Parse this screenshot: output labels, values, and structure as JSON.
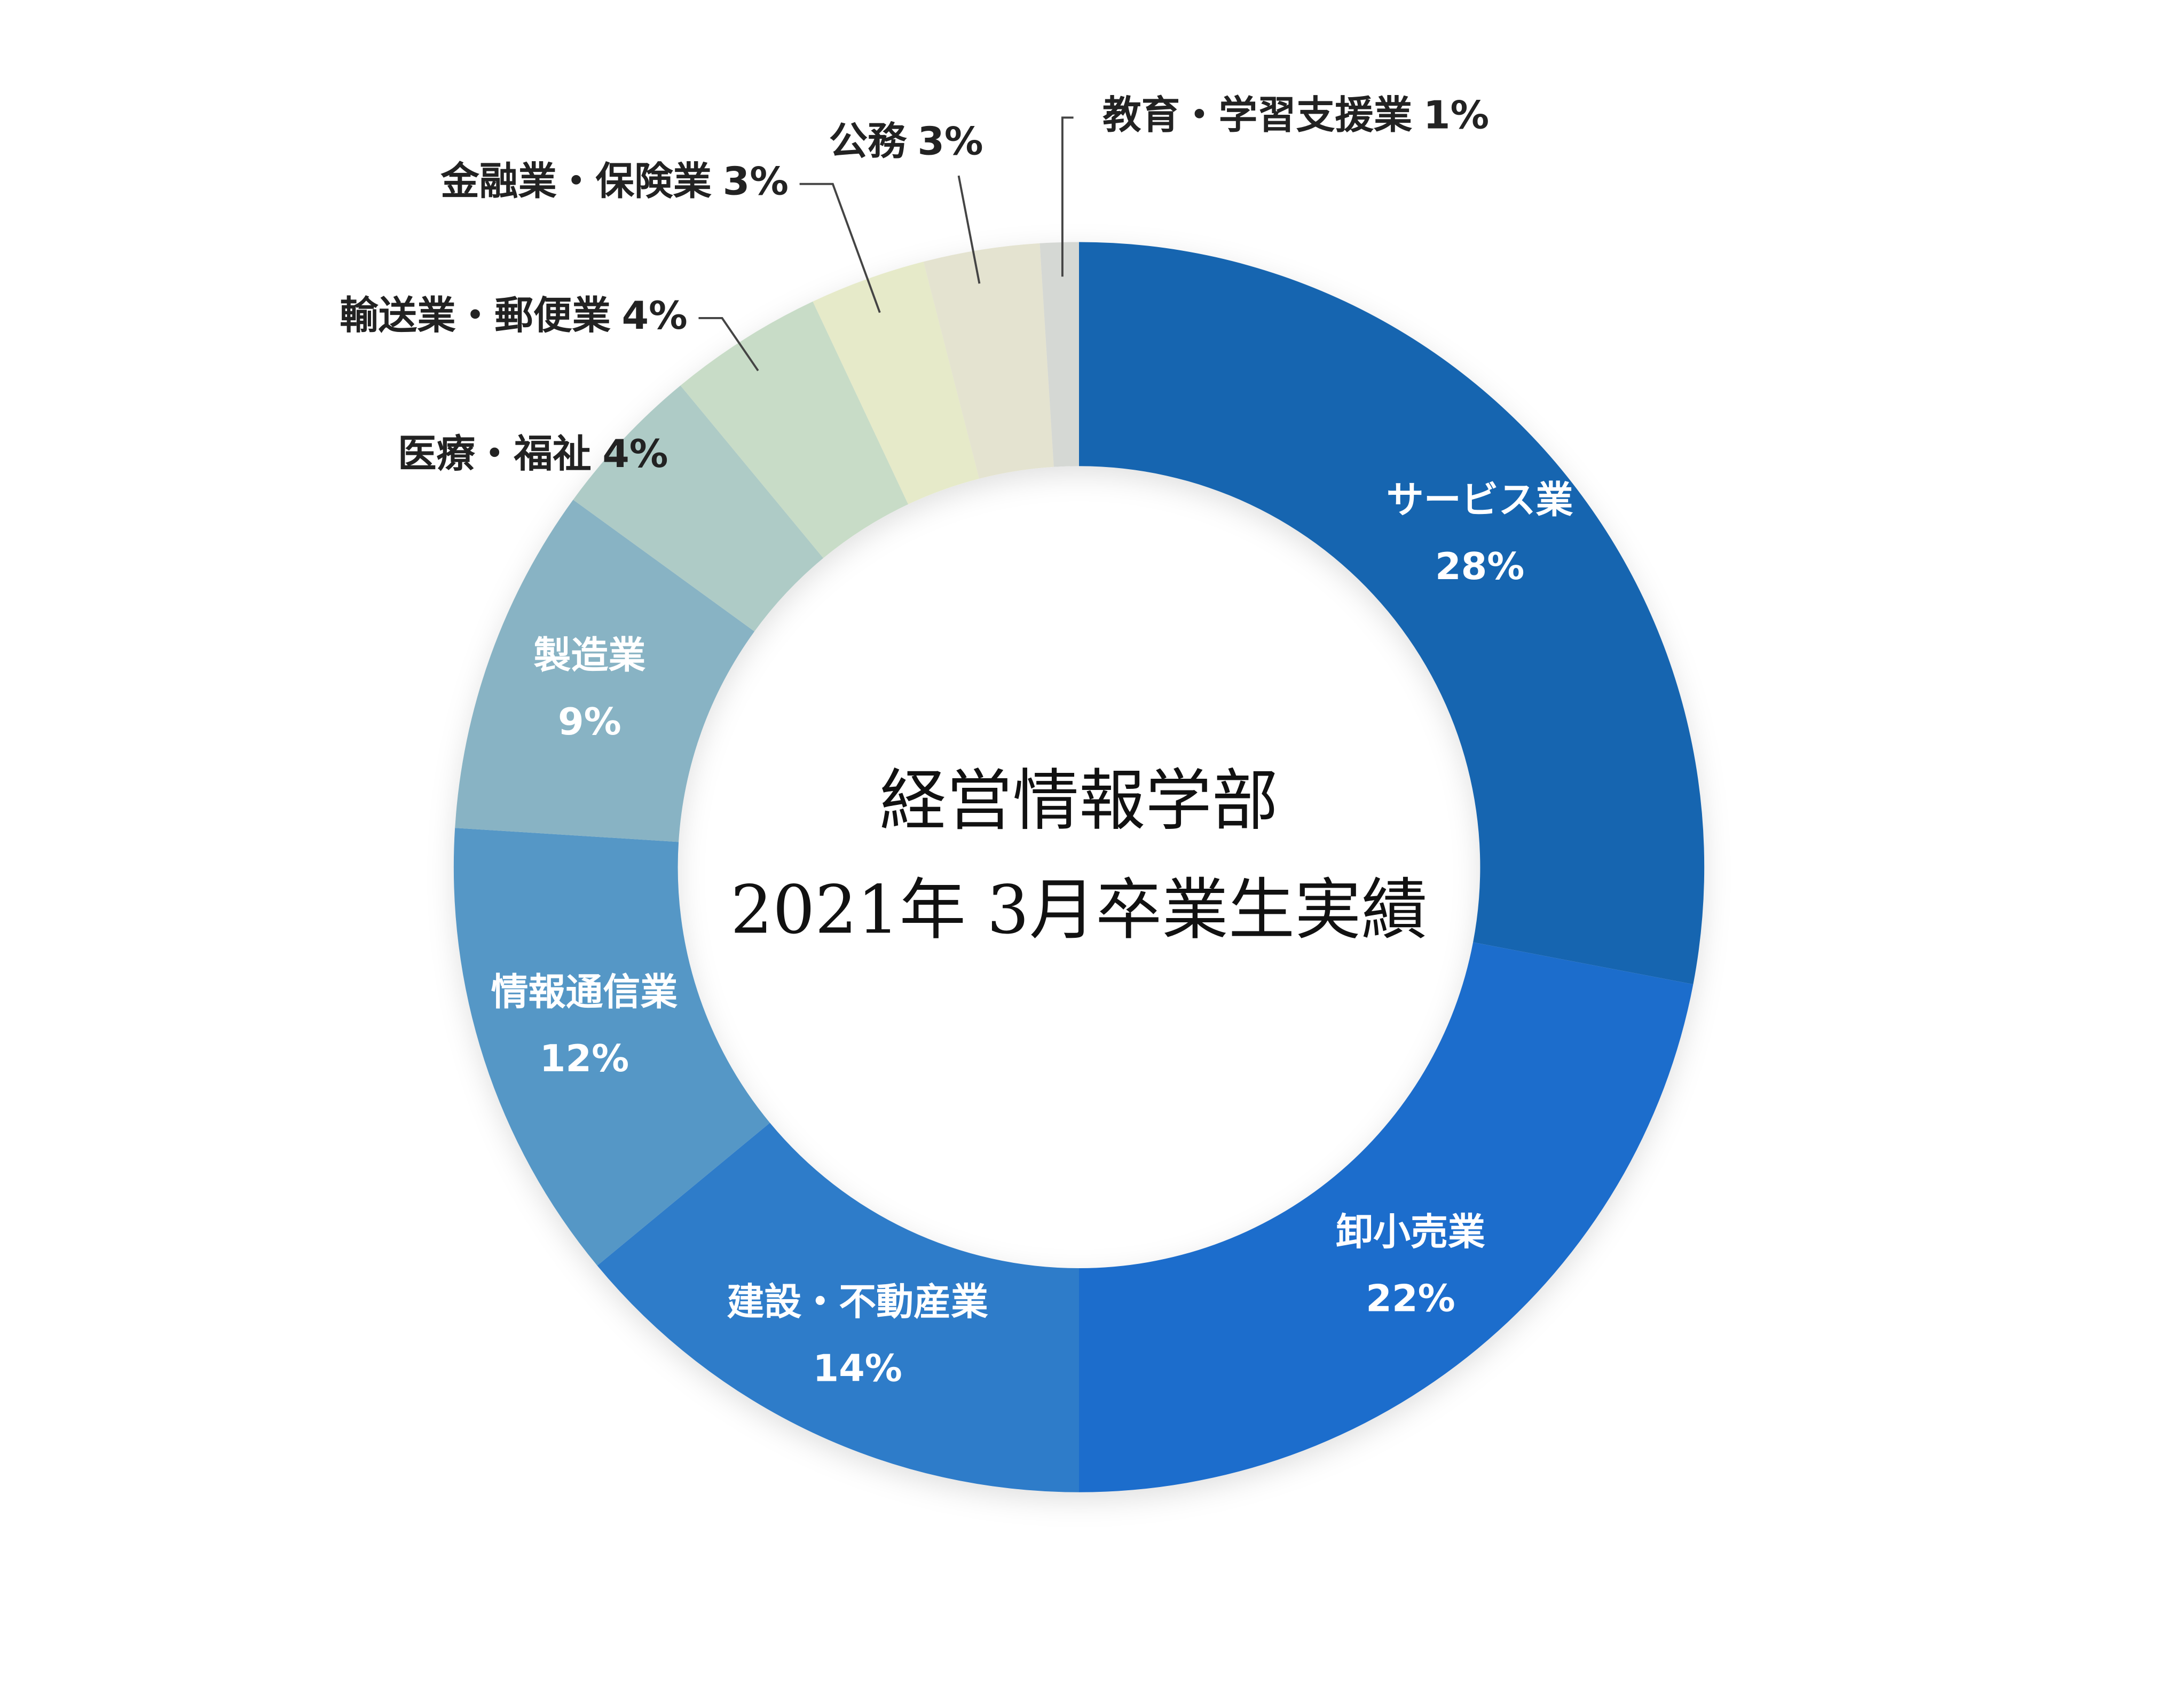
{
  "chart_data": {
    "type": "pie",
    "donut": true,
    "title": "経営情報学部",
    "subtitle": "2021年 3月卒業生実績",
    "categories": [
      "サービス業",
      "卸小売業",
      "建設・不動産業",
      "情報通信業",
      "製造業",
      "医療・福祉",
      "輸送業・郵便業",
      "金融業・保険業",
      "公務",
      "教育・学習支援業"
    ],
    "values": [
      28,
      22,
      14,
      12,
      9,
      4,
      4,
      3,
      3,
      1
    ],
    "value_labels": [
      "28%",
      "22%",
      "14%",
      "12%",
      "9%",
      "4%",
      "4%",
      "3%",
      "3%",
      "1%"
    ],
    "colors": [
      "#1565b0",
      "#1e6dcc",
      "#2f7bc9",
      "#5597c6",
      "#88b3c4",
      "#aecbc6",
      "#c8dcc7",
      "#e6eac9",
      "#e4e3d0",
      "#d5d8d4"
    ]
  }
}
